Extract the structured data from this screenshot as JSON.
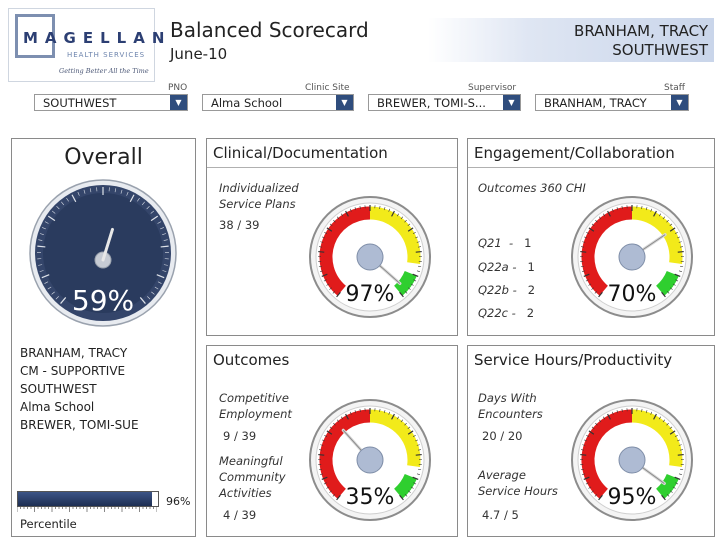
{
  "header": {
    "logo_name": "MAGELLAN",
    "logo_sub": "HEALTH SERVICES",
    "logo_tag": "Getting Better All the Time",
    "title": "Balanced Scorecard",
    "date": "June-10",
    "user_name": "BRANHAM, TRACY",
    "user_region": "SOUTHWEST"
  },
  "filters": {
    "pno": {
      "label": "PNO",
      "value": "SOUTHWEST"
    },
    "clinic": {
      "label": "Clinic Site",
      "value": "Alma School"
    },
    "supervisor": {
      "label": "Supervisor",
      "value": "BREWER, TOMI-S..."
    },
    "staff": {
      "label": "Staff",
      "value": "BRANHAM, TRACY"
    }
  },
  "overall": {
    "title": "Overall",
    "percent_label": "59%",
    "percent": 59,
    "info": [
      "BRANHAM, TRACY",
      "CM - SUPPORTIVE",
      "SOUTHWEST",
      "Alma School",
      "BREWER, TOMI-SUE"
    ],
    "percentile_label": "Percentile",
    "percentile_value_label": "96%",
    "percentile_value": 96
  },
  "clinical": {
    "title": "Clinical/Documentation",
    "metric_label": "Individualized Service Plans",
    "metric_line1": "Individualized",
    "metric_line2": "Service Plans",
    "metric_value": "38  /  39",
    "percent_label": "97%",
    "percent": 97
  },
  "engagement": {
    "title": "Engagement/Collaboration",
    "metric_label": "Outcomes 360 CHI",
    "rows": [
      {
        "label": "Q21",
        "sep": "-",
        "value": "1"
      },
      {
        "label": "Q22a",
        "sep": "-",
        "value": "1"
      },
      {
        "label": "Q22b",
        "sep": "-",
        "value": "2"
      },
      {
        "label": "Q22c",
        "sep": "-",
        "value": "2"
      }
    ],
    "percent_label": "70%",
    "percent": 70
  },
  "outcomes": {
    "title": "Outcomes",
    "m1_line1": "Competitive",
    "m1_line2": "Employment",
    "m1_value": "9   /  39",
    "m2_line1": "Meaningful",
    "m2_line2": "Community",
    "m2_line3": "Activities",
    "m2_value": "4   /  39",
    "percent_label": "35%",
    "percent": 35
  },
  "service": {
    "title": "Service Hours/Productivity",
    "m1_line1": "Days With",
    "m1_line2": "Encounters",
    "m1_value": "20  /  20",
    "m2_line1": "Average",
    "m2_line2": "Service Hours",
    "m2_value": "4.7  /  5",
    "percent_label": "95%",
    "percent": 95
  },
  "colors": {
    "red": "#e01b1b",
    "yellow": "#f2ea1a",
    "green": "#2fcf2f",
    "navy": "#2f4d7d",
    "dial": "#2a3b5e"
  }
}
